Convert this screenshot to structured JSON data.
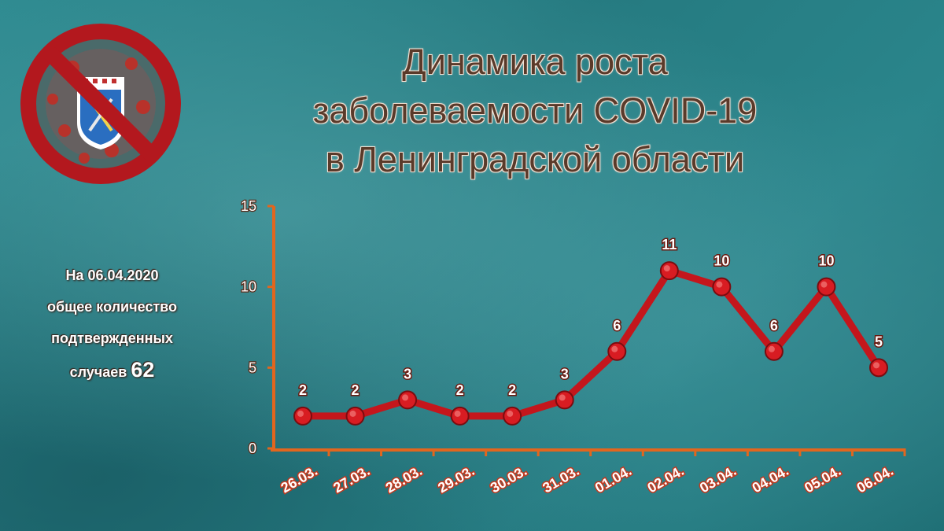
{
  "title": {
    "line1": "Динамика роста",
    "line2": "заболеваемости COVID-19",
    "line3": "в Ленинградской области"
  },
  "side_note": {
    "line1": "На 06.04.2020",
    "line2": "общее количество",
    "line3": "подтвержденных",
    "line4_prefix": "случаев",
    "total": "62"
  },
  "logo": {
    "icon": "no-covid-coat-of-arms-icon"
  },
  "colors": {
    "line": "#c4161c",
    "axis": "#e2661e",
    "marker": "#d81c22",
    "title": "#5a3a2a"
  },
  "chart_data": {
    "type": "line",
    "title": "Динамика роста заболеваемости COVID-19 в Ленинградской области",
    "xlabel": "",
    "ylabel": "",
    "categories": [
      "26.03.",
      "27.03.",
      "28.03.",
      "29.03.",
      "30.03.",
      "31.03.",
      "01.04.",
      "02.04.",
      "03.04.",
      "04.04.",
      "05.04.",
      "06.04."
    ],
    "series": [
      {
        "values": [
          2,
          2,
          3,
          2,
          2,
          3,
          6,
          11,
          10,
          6,
          10,
          5
        ]
      }
    ],
    "ylim": [
      0,
      15
    ],
    "yticks": [
      0,
      5,
      10,
      15
    ],
    "grid": false,
    "legend": "none",
    "data_labels": true
  }
}
